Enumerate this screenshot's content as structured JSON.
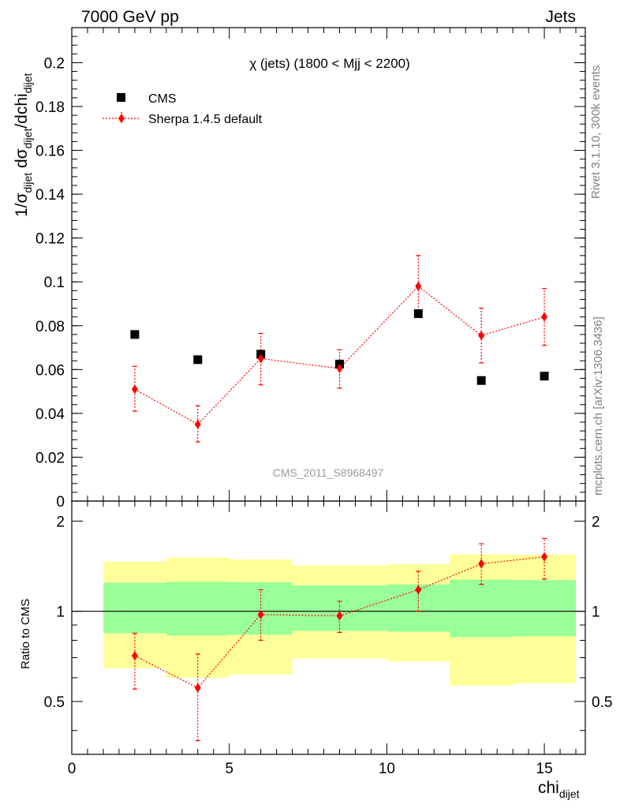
{
  "header": {
    "left": "7000 GeV pp",
    "right": "Jets"
  },
  "side_labels": {
    "rivet": "Rivet 3.1.10,  300k events",
    "mcplots": "mcplots.cern.ch [arXiv:1306.3436]"
  },
  "chart_data": [
    {
      "type": "scatter",
      "panel": "main",
      "title": "χ (jets) (1800 < Mjj < 2200)",
      "ylabel": "1/σdijet dσdijet/dchidijet",
      "xlabel": "",
      "xlim": [
        0,
        16.3
      ],
      "ylim": [
        0,
        0.216
      ],
      "y_ticks": [
        0,
        0.02,
        0.04,
        0.06,
        0.08,
        0.1,
        0.12,
        0.14,
        0.16,
        0.18,
        0.2
      ],
      "y_tick_labels": [
        "0",
        "0.02",
        "0.04",
        "0.06",
        "0.08",
        "0.1",
        "0.12",
        "0.14",
        "0.16",
        "0.18",
        "0.2"
      ],
      "watermark": "CMS_2011_S8968497",
      "legend_position": "top-left",
      "series": [
        {
          "name": "CMS",
          "color": "#000000",
          "marker": "square",
          "x": [
            2,
            4,
            6,
            8.5,
            11,
            13,
            15
          ],
          "y": [
            0.076,
            0.0645,
            0.067,
            0.0625,
            0.0855,
            0.055,
            0.057
          ]
        },
        {
          "name": "Sherpa 1.4.5 default",
          "color": "#ff0000",
          "marker": "diamond",
          "line": "dotted",
          "x": [
            2,
            4,
            6,
            8.5,
            11,
            13,
            15
          ],
          "y": [
            0.051,
            0.035,
            0.065,
            0.0605,
            0.098,
            0.0755,
            0.084
          ],
          "y_err_low": [
            0.041,
            0.027,
            0.053,
            0.0515,
            0.0855,
            0.063,
            0.071
          ],
          "y_err_high": [
            0.0615,
            0.0435,
            0.0765,
            0.069,
            0.112,
            0.088,
            0.097
          ]
        }
      ]
    },
    {
      "type": "scatter",
      "panel": "ratio",
      "ylabel": "Ratio to CMS",
      "xlabel": "chidijet",
      "xlim": [
        0,
        16.3
      ],
      "ylim": [
        0.333,
        2.333
      ],
      "y_scale": "log",
      "x_ticks": [
        0,
        5,
        10,
        15
      ],
      "x_tick_labels": [
        "0",
        "5",
        "10",
        "15"
      ],
      "y_ticks": [
        0.5,
        1,
        2
      ],
      "y_tick_labels": [
        "0.5",
        "1",
        "2"
      ],
      "reference_line": 1,
      "bands": [
        {
          "x_low": 1,
          "x_high": 3,
          "inner": [
            0.845,
            1.245
          ],
          "outer": [
            0.645,
            1.465
          ]
        },
        {
          "x_low": 3,
          "x_high": 5,
          "inner": [
            0.83,
            1.255
          ],
          "outer": [
            0.6,
            1.51
          ]
        },
        {
          "x_low": 5,
          "x_high": 7,
          "inner": [
            0.835,
            1.25
          ],
          "outer": [
            0.615,
            1.49
          ]
        },
        {
          "x_low": 7,
          "x_high": 10,
          "inner": [
            0.86,
            1.22
          ],
          "outer": [
            0.695,
            1.42
          ]
        },
        {
          "x_low": 10,
          "x_high": 12,
          "inner": [
            0.855,
            1.23
          ],
          "outer": [
            0.68,
            1.435
          ]
        },
        {
          "x_low": 12,
          "x_high": 14,
          "inner": [
            0.82,
            1.275
          ],
          "outer": [
            0.565,
            1.55
          ]
        },
        {
          "x_low": 14,
          "x_high": 16,
          "inner": [
            0.825,
            1.27
          ],
          "outer": [
            0.575,
            1.545
          ]
        }
      ],
      "band_colors": {
        "inner": "#99ff99",
        "outer": "#ffff99"
      },
      "series": [
        {
          "name": "Sherpa 1.4.5 default",
          "color": "#ff0000",
          "marker": "diamond",
          "line": "dotted",
          "x": [
            2,
            4,
            6,
            8.5,
            11,
            13,
            15
          ],
          "y": [
            0.71,
            0.555,
            0.975,
            0.965,
            1.18,
            1.44,
            1.52
          ],
          "y_err_low": [
            0.55,
            0.37,
            0.8,
            0.85,
            1.0,
            1.23,
            1.28
          ],
          "y_err_high": [
            0.845,
            0.72,
            1.18,
            1.08,
            1.36,
            1.68,
            1.75
          ]
        }
      ]
    }
  ]
}
